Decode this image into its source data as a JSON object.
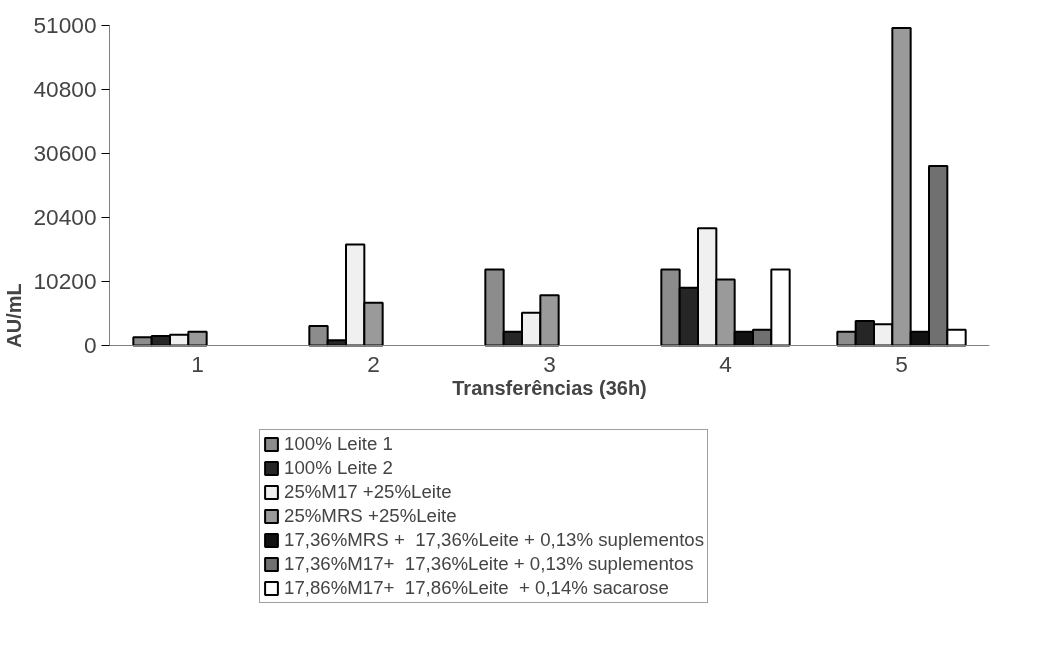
{
  "chart_data": {
    "type": "bar",
    "xlabel": "Transferências (36h)",
    "ylabel": "AU/mL",
    "categories": [
      "1",
      "2",
      "3",
      "4",
      "5"
    ],
    "series": [
      {
        "name": "100% Leite 1",
        "color": "#8c8c8c",
        "values": [
          1300,
          3100,
          12100,
          12100,
          2200
        ]
      },
      {
        "name": "100% Leite 2",
        "color": "#262626",
        "values": [
          1500,
          850,
          2200,
          9200,
          3900
        ]
      },
      {
        "name": "25%M17 +25%Leite",
        "color": "#f0f0f0",
        "values": [
          1700,
          16100,
          5200,
          18700,
          3400
        ]
      },
      {
        "name": "25%MRS +25%Leite",
        "color": "#9a9a9a",
        "values": [
          2200,
          6800,
          8000,
          10500,
          50600
        ]
      },
      {
        "name": "17,36%MRS +  17,36%Leite + 0,13% suplementos",
        "color": "#111111",
        "values": [
          null,
          null,
          null,
          2200,
          2200
        ]
      },
      {
        "name": "17,36%M17+  17,36%Leite + 0,13% suplementos",
        "color": "#707070",
        "values": [
          null,
          null,
          null,
          2500,
          28600
        ]
      },
      {
        "name": "17,86%M17+  17,86%Leite  + 0,14% sacarose",
        "color": "#ffffff",
        "values": [
          null,
          null,
          null,
          12100,
          2500
        ]
      }
    ],
    "ylim": [
      0,
      51000
    ],
    "yticks": [
      0,
      10200,
      20400,
      30600,
      40800,
      51000
    ],
    "legend": "bottom"
  }
}
